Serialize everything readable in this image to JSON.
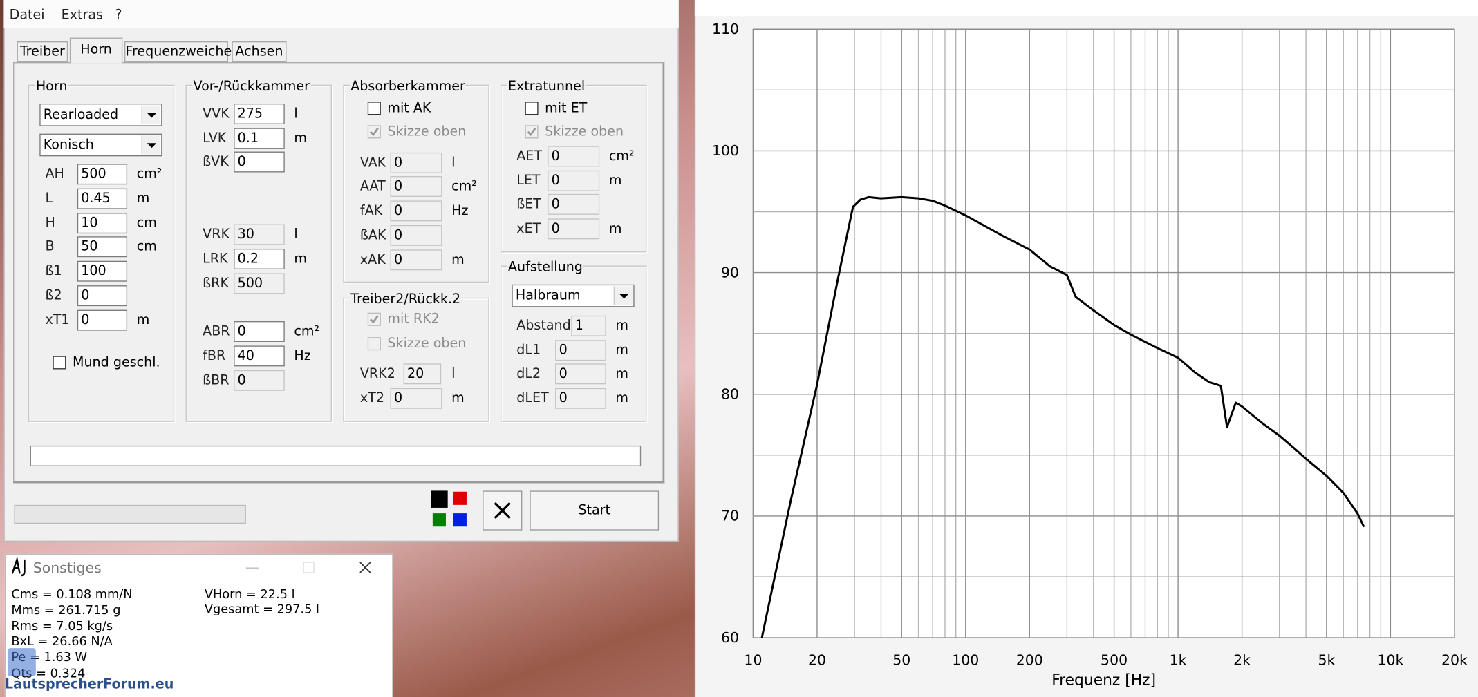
{
  "menu": [
    "Datei",
    "Extras",
    "?"
  ],
  "tabs": [
    "Treiber",
    "Horn",
    "Frequenzweiche",
    "Achsen"
  ],
  "active_tab": 1,
  "groups": {
    "horn": {
      "title": "Horn",
      "selects": [
        "Rearloaded",
        "Konisch"
      ],
      "fields": [
        {
          "label": "AH",
          "value": "500",
          "unit": "cm²"
        },
        {
          "label": "L",
          "value": "0.45",
          "unit": "m"
        },
        {
          "label": "H",
          "value": "10",
          "unit": "cm"
        },
        {
          "label": "B",
          "value": "50",
          "unit": "cm"
        },
        {
          "label": "ß1",
          "value": "100"
        },
        {
          "label": "ß2",
          "value": "0"
        },
        {
          "label": "xT1",
          "value": "0",
          "unit": "m"
        }
      ],
      "checks": [
        {
          "label": "Mund geschl.",
          "checked": false
        }
      ]
    },
    "kammer": {
      "title": "Vor-/Rückkammer",
      "fields": [
        {
          "label": "VVK",
          "value": "275",
          "unit": "l"
        },
        {
          "label": "LVK",
          "value": "0.1",
          "unit": "m"
        },
        {
          "label": "ßVK",
          "value": "0"
        },
        {
          "label": "VRK",
          "value": "30",
          "unit": "l"
        },
        {
          "label": "LRK",
          "value": "0.2",
          "unit": "m"
        },
        {
          "label": "ßRK",
          "value": "500"
        },
        {
          "label": "ABR",
          "value": "0",
          "unit": "cm²"
        },
        {
          "label": "fBR",
          "value": "40",
          "unit": "Hz"
        },
        {
          "label": "ßBR",
          "value": "0"
        }
      ]
    },
    "absorber": {
      "title": "Absorberkammer",
      "checks": [
        {
          "label": "mit AK",
          "checked": false
        },
        {
          "label": "Skizze oben",
          "checked": true
        }
      ],
      "fields": [
        {
          "label": "VAK",
          "value": "0",
          "unit": "l"
        },
        {
          "label": "AAT",
          "value": "0",
          "unit": "cm²"
        },
        {
          "label": "fAK",
          "value": "0",
          "unit": "Hz"
        },
        {
          "label": "ßAK",
          "value": "0"
        },
        {
          "label": "xAK",
          "value": "0",
          "unit": "m"
        }
      ]
    },
    "treiber2": {
      "title": "Treiber2/Rückk.2",
      "checks": [
        {
          "label": "mit RK2",
          "checked": true
        },
        {
          "label": "Skizze oben",
          "checked": false
        }
      ],
      "fields": [
        {
          "label": "VRK2",
          "value": "20",
          "unit": "l"
        },
        {
          "label": "xT2",
          "value": "0",
          "unit": "m"
        }
      ]
    },
    "extratunnel": {
      "title": "Extratunnel",
      "checks": [
        {
          "label": "mit ET",
          "checked": false
        },
        {
          "label": "Skizze oben",
          "checked": true
        }
      ],
      "fields": [
        {
          "label": "AET",
          "value": "0",
          "unit": "cm²"
        },
        {
          "label": "LET",
          "value": "0",
          "unit": "m"
        },
        {
          "label": "ßET",
          "value": "0"
        },
        {
          "label": "xET",
          "value": "0",
          "unit": "m"
        }
      ]
    },
    "aufstellung": {
      "title": "Aufstellung",
      "selects": [
        "Halbraum"
      ],
      "fields": [
        {
          "label": "Abstand",
          "value": "1",
          "unit": "m"
        },
        {
          "label": "dL1",
          "value": "0",
          "unit": "m"
        },
        {
          "label": "dL2",
          "value": "0",
          "unit": "m"
        },
        {
          "label": "dLET",
          "value": "0",
          "unit": "m"
        }
      ]
    }
  },
  "start": "Start",
  "sonstiges": {
    "title": "Sonstiges",
    "left": [
      "Cms = 0.108 mm/N",
      "Mms = 261.715 g",
      "Rms = 7.05 kg/s",
      "BxL = 26.66 N/A",
      "Pe = 1.63 W",
      "Qts = 0.324"
    ],
    "right": [
      "VHorn = 22.5 l",
      "Vgesamt = 297.5 l"
    ]
  },
  "watermark": "LautsprecherForum.eu",
  "chart_data": {
    "type": "line",
    "xlabel": "Frequenz [Hz]",
    "xscale": "log",
    "grid": true,
    "color": "#000000",
    "x": [
      11,
      15,
      20,
      25,
      29.5,
      32,
      35,
      40,
      50,
      60,
      70,
      80,
      100,
      150,
      200,
      250,
      300,
      330,
      400,
      500,
      600,
      700,
      800,
      1000,
      1200,
      1400,
      1590,
      1700,
      1870,
      2000,
      2500,
      3000,
      3500,
      4000,
      5000,
      6000,
      7000,
      7500
    ],
    "values": [
      60,
      71.2,
      80.8,
      89.4,
      95.4,
      96,
      96.2,
      96.1,
      96.2,
      96.1,
      95.9,
      95.5,
      94.7,
      93,
      91.9,
      90.5,
      89.8,
      88,
      86.9,
      85.7,
      84.9,
      84.3,
      83.8,
      83,
      81.8,
      81,
      80.7,
      77.3,
      79.3,
      79,
      77.6,
      76.6,
      75.6,
      74.7,
      73.3,
      71.9,
      70.2,
      69.1
    ],
    "xlim": [
      10,
      20000
    ],
    "ylim": [
      60,
      110
    ],
    "xticks": [
      10,
      20,
      50,
      100,
      200,
      500,
      {
        "value": 1000,
        "label": "1k"
      },
      {
        "value": 2000,
        "label": "2k"
      },
      {
        "value": 5000,
        "label": "5k"
      },
      {
        "value": 10000,
        "label": "10k"
      },
      {
        "value": 20000,
        "label": "20k"
      }
    ],
    "xminor": [
      30,
      40,
      60,
      70,
      80,
      90,
      300,
      400,
      600,
      700,
      800,
      900,
      3000,
      4000,
      6000,
      7000,
      8000,
      9000
    ],
    "yticks": [
      60,
      70,
      80,
      90,
      100,
      110
    ],
    "yminor": [
      65,
      75,
      85,
      95,
      105
    ]
  }
}
